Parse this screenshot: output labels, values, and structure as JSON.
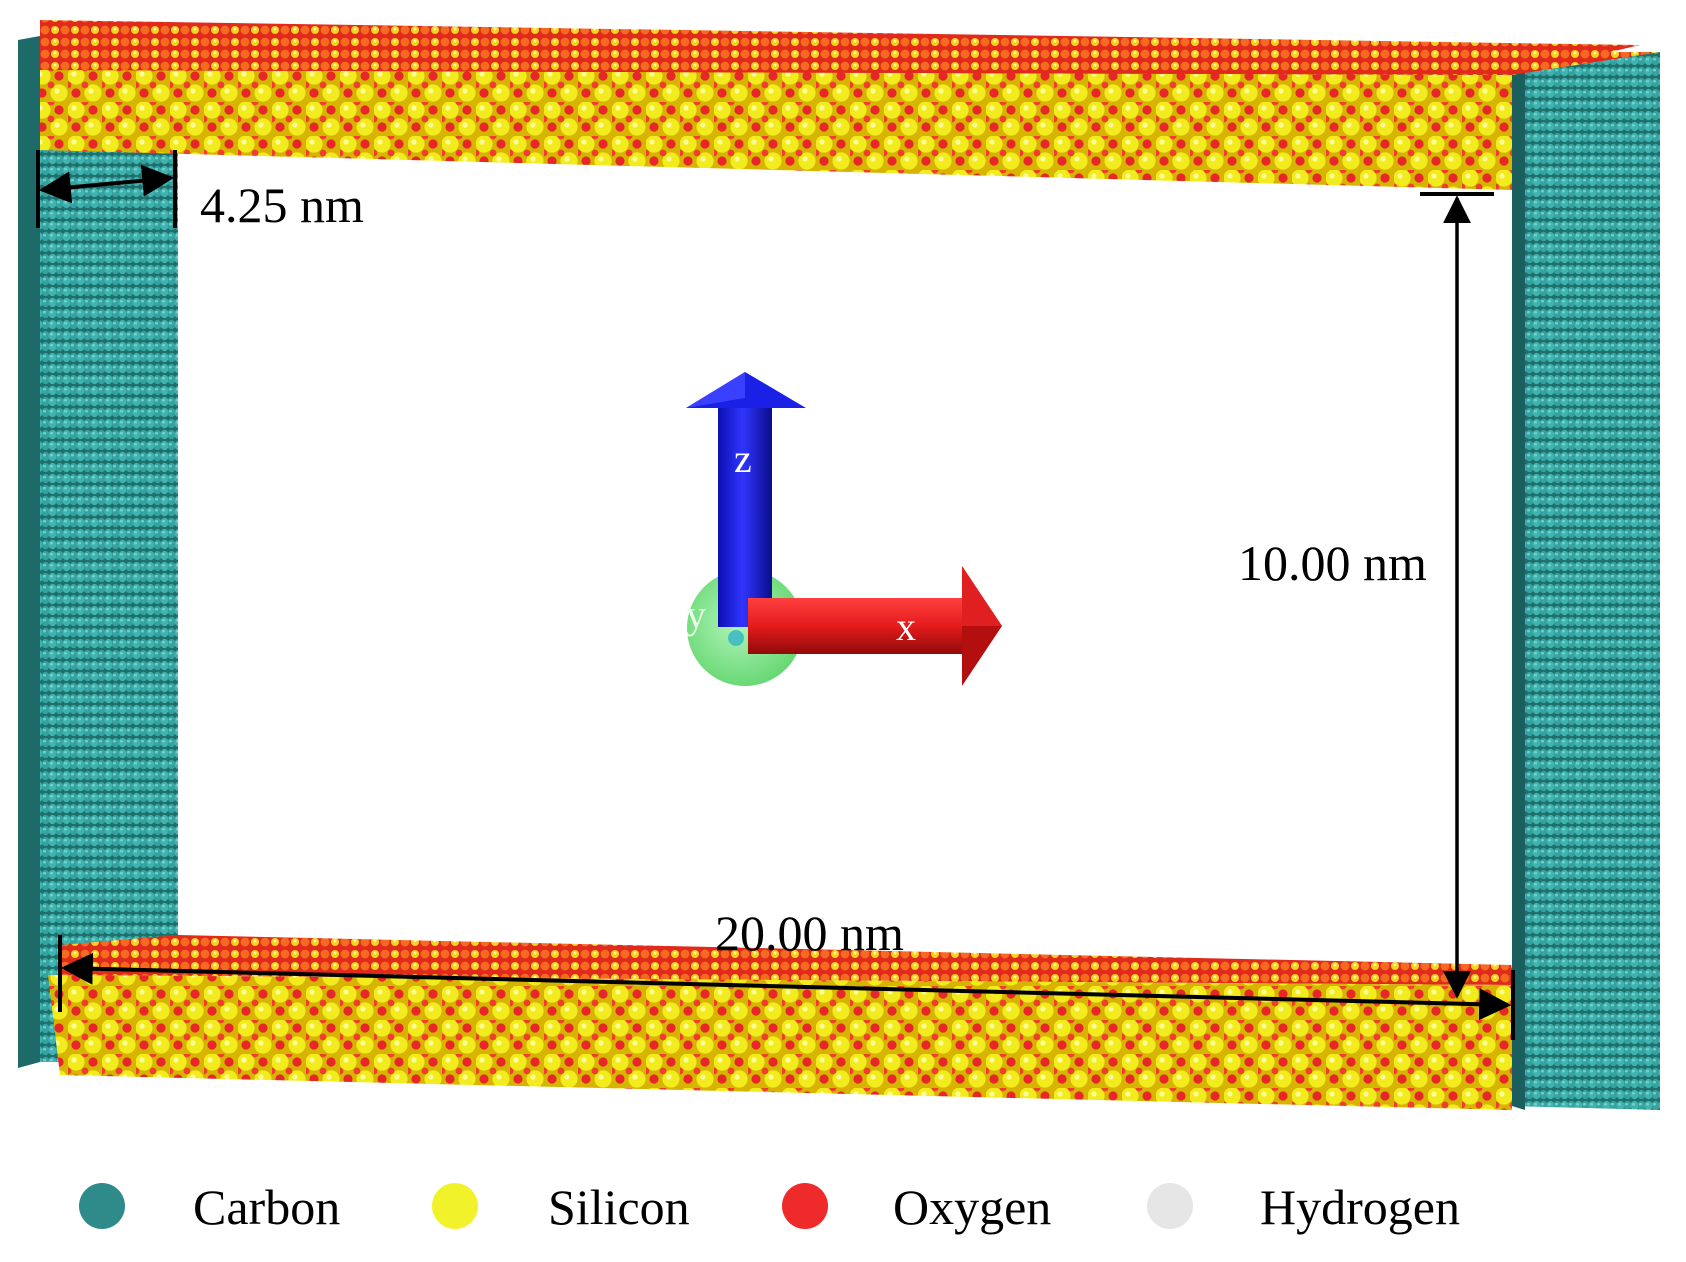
{
  "diagram": {
    "dimensions": {
      "wall_thickness": "4.25 nm",
      "channel_height": "10.00 nm",
      "channel_length": "20.00 nm"
    },
    "axes": {
      "z_label": "z",
      "x_label": "x",
      "y_label": "y",
      "z_color": "#1f22e8",
      "x_color": "#e31c1c",
      "y_color": "#7de38a"
    },
    "atom_colors": {
      "carbon": "#2e8b89",
      "silicon": "#f2f22a",
      "oxygen": "#ef2a2a",
      "hydrogen": "#e6e6e6"
    },
    "legend": [
      {
        "label": "Carbon",
        "color": "#2e8b89"
      },
      {
        "label": "Silicon",
        "color": "#f2f22a"
      },
      {
        "label": "Oxygen",
        "color": "#ef2a2a"
      },
      {
        "label": "Hydrogen",
        "color": "#e6e6e6"
      }
    ]
  }
}
